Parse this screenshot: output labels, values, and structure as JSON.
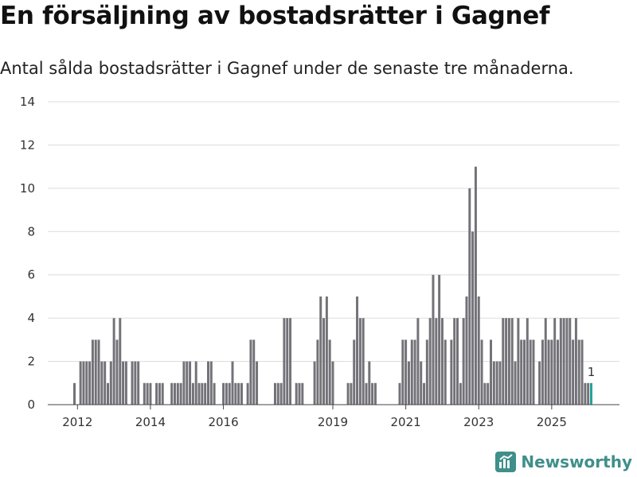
{
  "header": {
    "title": "En försäljning av bostadsrätter i Gagnef",
    "subtitle": "Antal sålda bostadsrätter i Gagnef under de senaste tre månaderna."
  },
  "branding": {
    "name": "Newsworthy",
    "icon": "newsworthy-logo-icon"
  },
  "colors": {
    "bar": "#737278",
    "highlight": "#23a39b",
    "brand": "#3f8f8a"
  },
  "chart_data": {
    "type": "bar",
    "title": "En försäljning av bostadsrätter i Gagnef",
    "subtitle": "Antal sålda bostadsrätter i Gagnef under de senaste tre månaderna.",
    "x_start": "2011-12",
    "x_tick_labels": [
      "2012",
      "2014",
      "2016",
      "2019",
      "2021",
      "2023",
      "2025"
    ],
    "ylim": [
      0,
      14
    ],
    "y_ticks": [
      0,
      2,
      4,
      6,
      8,
      10,
      12,
      14
    ],
    "grid": true,
    "highlight_last": true,
    "last_label": "1",
    "values": [
      1,
      0,
      2,
      2,
      2,
      2,
      3,
      3,
      3,
      2,
      2,
      1,
      2,
      4,
      3,
      4,
      2,
      2,
      0,
      2,
      2,
      2,
      0,
      1,
      1,
      1,
      0,
      1,
      1,
      1,
      0,
      0,
      1,
      1,
      1,
      1,
      2,
      2,
      2,
      1,
      2,
      1,
      1,
      1,
      2,
      2,
      1,
      0,
      0,
      1,
      1,
      1,
      2,
      1,
      1,
      1,
      0,
      1,
      3,
      3,
      2,
      0,
      0,
      0,
      0,
      0,
      1,
      1,
      1,
      4,
      4,
      4,
      0,
      1,
      1,
      1,
      0,
      0,
      0,
      2,
      3,
      5,
      4,
      5,
      3,
      2,
      0,
      0,
      0,
      0,
      1,
      1,
      3,
      5,
      4,
      4,
      1,
      2,
      1,
      1,
      0,
      0,
      0,
      0,
      0,
      0,
      0,
      1,
      3,
      3,
      2,
      3,
      3,
      4,
      2,
      1,
      3,
      4,
      6,
      4,
      6,
      4,
      3,
      0,
      3,
      4,
      4,
      1,
      4,
      5,
      10,
      8,
      11,
      5,
      3,
      1,
      1,
      3,
      2,
      2,
      2,
      4,
      4,
      4,
      4,
      2,
      4,
      3,
      3,
      4,
      3,
      3,
      0,
      2,
      3,
      4,
      3,
      3,
      4,
      3,
      4,
      4,
      4,
      4,
      3,
      4,
      3,
      3,
      1,
      1,
      1
    ]
  }
}
